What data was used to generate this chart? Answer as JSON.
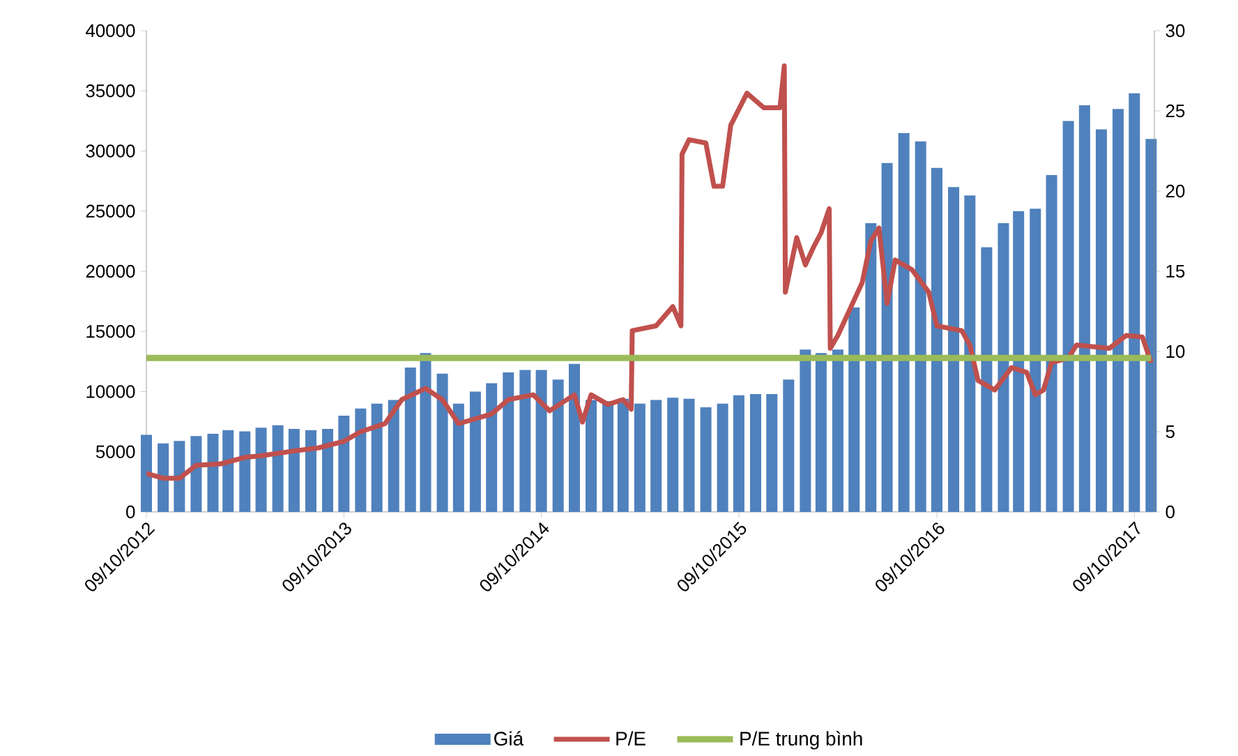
{
  "chart_data": {
    "type": "bar",
    "xlim": [
      "2012-10-09",
      "2017-11-15"
    ],
    "xticks": [
      {
        "value": "2012-10-09",
        "label": "09/10/2012"
      },
      {
        "value": "2013-10-09",
        "label": "09/10/2013"
      },
      {
        "value": "2014-10-09",
        "label": "09/10/2014"
      },
      {
        "value": "2015-10-09",
        "label": "09/10/2015"
      },
      {
        "value": "2016-10-09",
        "label": "09/10/2016"
      },
      {
        "value": "2017-10-09",
        "label": "09/10/2017"
      }
    ],
    "ylim": [
      0,
      40000
    ],
    "yticks": [
      0,
      5000,
      10000,
      15000,
      20000,
      25000,
      30000,
      35000,
      40000
    ],
    "y2lim": [
      0,
      30
    ],
    "y2ticks": [
      0,
      5,
      10,
      15,
      20,
      25,
      30
    ],
    "legend": "bottom",
    "series": [
      {
        "name": "Giá",
        "color": "#4f81bd",
        "x": [
          "2012-10-09",
          "2012-11-09",
          "2012-12-09",
          "2013-01-09",
          "2013-02-09",
          "2013-03-09",
          "2013-04-09",
          "2013-05-09",
          "2013-06-09",
          "2013-07-09",
          "2013-08-09",
          "2013-09-09",
          "2013-10-09",
          "2013-11-09",
          "2013-12-09",
          "2014-01-09",
          "2014-02-09",
          "2014-03-09",
          "2014-04-09",
          "2014-05-09",
          "2014-06-09",
          "2014-07-09",
          "2014-08-09",
          "2014-09-09",
          "2014-10-09",
          "2014-11-09",
          "2014-12-09",
          "2015-01-09",
          "2015-02-09",
          "2015-03-09",
          "2015-04-09",
          "2015-05-09",
          "2015-06-09",
          "2015-07-09",
          "2015-08-09",
          "2015-09-09",
          "2015-10-09",
          "2015-11-09",
          "2015-12-09",
          "2016-01-09",
          "2016-02-09",
          "2016-03-09",
          "2016-04-09",
          "2016-05-09",
          "2016-06-09",
          "2016-07-09",
          "2016-08-09",
          "2016-09-09",
          "2016-10-09",
          "2016-11-09",
          "2016-12-09",
          "2017-01-09",
          "2017-02-09",
          "2017-03-09",
          "2017-04-09",
          "2017-05-09",
          "2017-06-09",
          "2017-07-09",
          "2017-08-09",
          "2017-09-09",
          "2017-10-09",
          "2017-11-09"
        ],
        "values": [
          6400,
          5700,
          5900,
          6300,
          6500,
          6800,
          6700,
          7000,
          7200,
          6900,
          6800,
          6900,
          8000,
          8600,
          9000,
          9300,
          12000,
          13200,
          11500,
          9000,
          10000,
          10700,
          11600,
          11800,
          11800,
          11000,
          12300,
          9300,
          9200,
          9400,
          9000,
          9300,
          9500,
          9400,
          8700,
          9000,
          9700,
          9800,
          9800,
          11000,
          13500,
          13200,
          13500,
          17000,
          24000,
          29000,
          31500,
          30800,
          28600,
          27000,
          26300,
          22000,
          24000,
          25000,
          25200,
          28000,
          32500,
          33800,
          31800,
          33500,
          34800,
          31000
        ]
      },
      {
        "name": "P/E",
        "type": "line",
        "axis": "y2",
        "color": "#c0504d",
        "x": [
          "2012-10-09",
          "2012-11-09",
          "2012-12-09",
          "2013-01-09",
          "2013-02-24",
          "2013-04-09",
          "2013-05-09",
          "2013-07-09",
          "2013-08-24",
          "2013-10-09",
          "2013-11-09",
          "2013-12-24",
          "2014-01-24",
          "2014-03-09",
          "2014-04-09",
          "2014-05-09",
          "2014-07-09",
          "2014-08-09",
          "2014-09-24",
          "2014-10-24",
          "2014-12-09",
          "2014-12-24",
          "2015-01-09",
          "2015-02-09",
          "2015-03-09",
          "2015-03-24",
          "2015-03-26",
          "2015-05-09",
          "2015-06-09",
          "2015-06-24",
          "2015-06-26",
          "2015-07-09",
          "2015-08-09",
          "2015-08-24",
          "2015-09-09",
          "2015-09-24",
          "2015-10-24",
          "2015-11-24",
          "2015-12-24",
          "2016-01-01",
          "2016-01-03",
          "2016-01-24",
          "2016-02-09",
          "2016-02-24",
          "2016-03-09",
          "2016-03-24",
          "2016-03-26",
          "2016-04-09",
          "2016-05-24",
          "2016-06-09",
          "2016-06-24",
          "2016-07-09",
          "2016-07-24",
          "2016-08-24",
          "2016-09-24",
          "2016-10-09",
          "2016-11-24",
          "2016-12-09",
          "2016-12-24",
          "2017-01-24",
          "2017-02-24",
          "2017-03-24",
          "2017-04-09",
          "2017-04-24",
          "2017-05-09",
          "2017-06-09",
          "2017-06-24",
          "2017-08-24",
          "2017-09-24",
          "2017-10-24",
          "2017-11-09"
        ],
        "values": [
          2.4,
          2.1,
          2.1,
          2.9,
          3.0,
          3.4,
          3.5,
          3.8,
          4.0,
          4.4,
          5.0,
          5.5,
          7.0,
          7.7,
          7.0,
          5.5,
          6.1,
          7.0,
          7.3,
          6.3,
          7.3,
          5.6,
          7.3,
          6.7,
          7.0,
          6.4,
          11.3,
          11.6,
          12.8,
          11.6,
          22.3,
          23.2,
          23.0,
          20.3,
          20.3,
          24.1,
          26.1,
          25.2,
          25.2,
          27.8,
          13.7,
          17.1,
          15.4,
          16.5,
          17.4,
          18.9,
          10.2,
          11.0,
          14.3,
          16.9,
          17.7,
          13.0,
          15.7,
          15.1,
          13.7,
          11.6,
          11.3,
          10.4,
          8.2,
          7.6,
          9.0,
          8.7,
          7.3,
          7.6,
          9.3,
          9.6,
          10.4,
          10.2,
          11.0,
          10.9,
          9.3
        ]
      },
      {
        "name": "P/E trung bình",
        "type": "line",
        "axis": "y2",
        "color": "#9bbb59",
        "x": [
          "2012-10-09",
          "2017-11-09"
        ],
        "values": [
          9.6,
          9.6
        ]
      }
    ]
  }
}
